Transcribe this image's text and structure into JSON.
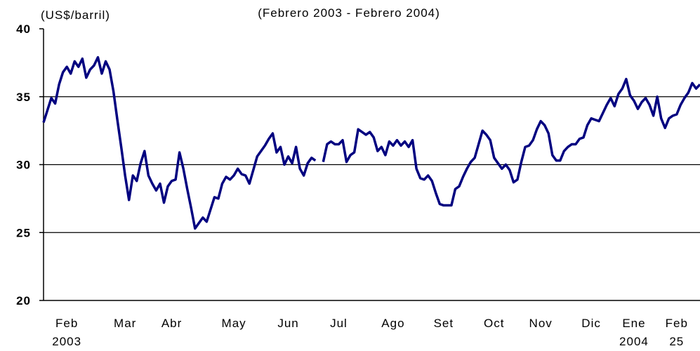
{
  "chart_data": {
    "type": "line",
    "title": "(Febrero 2003 - Febrero 2004)",
    "y_label": "(US$/barril)",
    "color": "#000080",
    "ylim": [
      20,
      40
    ],
    "yticks": [
      20,
      25,
      30,
      35,
      40
    ],
    "grid": true,
    "categories": [
      null,
      null,
      null,
      null,
      null,
      null,
      "Feb 2003",
      null,
      null,
      null,
      null,
      null,
      null,
      null,
      null,
      null,
      null,
      null,
      null,
      null,
      null,
      "Mar",
      null,
      null,
      null,
      null,
      null,
      null,
      null,
      null,
      null,
      null,
      null,
      "Abr",
      null,
      null,
      null,
      null,
      null,
      null,
      null,
      null,
      null,
      null,
      null,
      null,
      null,
      null,
      null,
      "May",
      null,
      null,
      null,
      null,
      null,
      null,
      null,
      null,
      null,
      null,
      null,
      null,
      null,
      "Jun",
      null,
      null,
      null,
      null,
      null,
      null,
      null,
      null,
      null,
      null,
      null,
      null,
      "Jul",
      null,
      null,
      null,
      null,
      null,
      null,
      null,
      null,
      null,
      null,
      null,
      null,
      null,
      "Ago",
      null,
      null,
      null,
      null,
      null,
      null,
      null,
      null,
      null,
      null,
      null,
      null,
      "Set",
      null,
      null,
      null,
      null,
      null,
      null,
      null,
      null,
      null,
      null,
      null,
      null,
      "Oct",
      null,
      null,
      null,
      null,
      null,
      null,
      null,
      null,
      null,
      null,
      null,
      "Nov",
      null,
      null,
      null,
      null,
      null,
      null,
      null,
      null,
      null,
      null,
      null,
      null,
      "Dic",
      null,
      null,
      null,
      null,
      null,
      null,
      null,
      null,
      null,
      null,
      "Ene 2004",
      null,
      null,
      null,
      null,
      null,
      null,
      null,
      null,
      null,
      null,
      "Feb 25",
      null,
      null,
      null,
      null,
      null,
      null
    ],
    "values": [
      33.1,
      34.0,
      34.9,
      34.5,
      35.9,
      36.8,
      37.2,
      36.7,
      37.6,
      37.2,
      37.8,
      36.4,
      37.0,
      37.3,
      37.9,
      36.7,
      37.6,
      37.0,
      35.4,
      33.3,
      31.3,
      29.2,
      27.4,
      29.2,
      28.8,
      30.1,
      31.0,
      29.2,
      28.6,
      28.1,
      28.6,
      27.2,
      28.4,
      28.8,
      28.9,
      30.9,
      29.7,
      28.2,
      26.8,
      25.3,
      25.7,
      26.1,
      25.8,
      26.7,
      27.6,
      27.5,
      28.6,
      29.1,
      28.9,
      29.2,
      29.7,
      29.3,
      29.2,
      28.6,
      29.6,
      30.6,
      31.0,
      31.4,
      31.9,
      32.3,
      30.9,
      31.3,
      30.0,
      30.6,
      30.1,
      31.3,
      29.7,
      29.2,
      30.1,
      30.5,
      30.3,
      null,
      30.2,
      31.5,
      31.7,
      31.5,
      31.5,
      31.8,
      30.2,
      30.7,
      30.9,
      32.6,
      32.4,
      32.2,
      32.4,
      32.0,
      31.0,
      31.3,
      30.7,
      31.7,
      31.4,
      31.8,
      31.4,
      31.7,
      31.3,
      31.8,
      29.7,
      29.0,
      28.9,
      29.2,
      28.8,
      27.9,
      27.1,
      27.0,
      27.0,
      27.0,
      28.2,
      28.4,
      29.1,
      29.7,
      30.2,
      30.5,
      31.5,
      32.5,
      32.2,
      31.8,
      30.5,
      30.1,
      29.7,
      30.0,
      29.6,
      28.7,
      28.9,
      30.2,
      31.3,
      31.4,
      31.8,
      32.6,
      33.2,
      32.9,
      32.3,
      30.7,
      30.3,
      30.3,
      31.0,
      31.3,
      31.5,
      31.5,
      31.9,
      32.0,
      32.9,
      33.4,
      33.3,
      33.2,
      33.8,
      34.4,
      34.9,
      34.3,
      35.2,
      35.6,
      36.3,
      35.1,
      34.7,
      34.1,
      34.6,
      34.9,
      34.4,
      33.6,
      35.0,
      33.4,
      32.7,
      33.4,
      33.6,
      33.7,
      34.4,
      34.9,
      35.3,
      36.0,
      35.6,
      35.9
    ]
  }
}
